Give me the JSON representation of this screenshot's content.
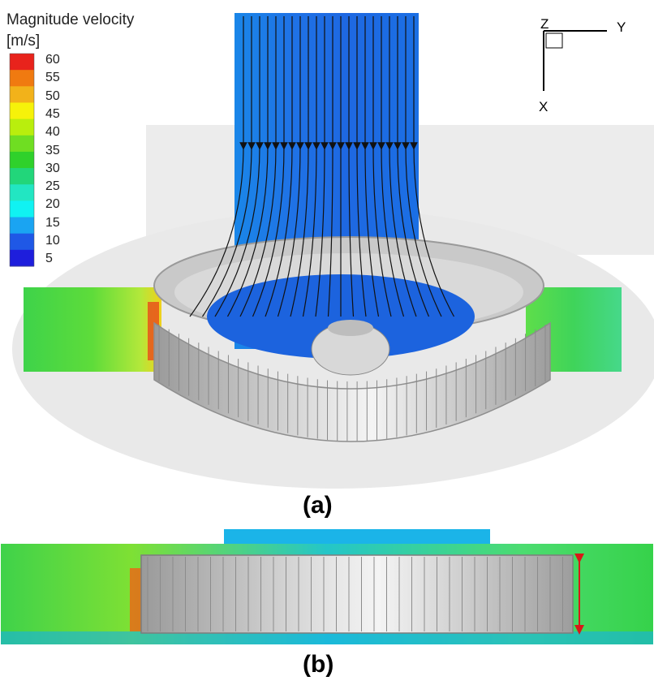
{
  "legend": {
    "title": "Magnitude velocity",
    "unit": "[m/s]",
    "ticks": [
      "60",
      "55",
      "50",
      "45",
      "40",
      "35",
      "30",
      "25",
      "20",
      "15",
      "10",
      "5"
    ],
    "colors": [
      "#e8231c",
      "#f07a10",
      "#f2b21a",
      "#f6f20a",
      "#b9ee0d",
      "#6fde22",
      "#2fd12b",
      "#22d67a",
      "#22e6c2",
      "#10f2f2",
      "#1aa4f2",
      "#1f58e6",
      "#1e1edc"
    ]
  },
  "axes": {
    "z": "Z",
    "y": "Y",
    "x": "X"
  },
  "panels": {
    "a": "(a)",
    "b": "(b)"
  }
}
